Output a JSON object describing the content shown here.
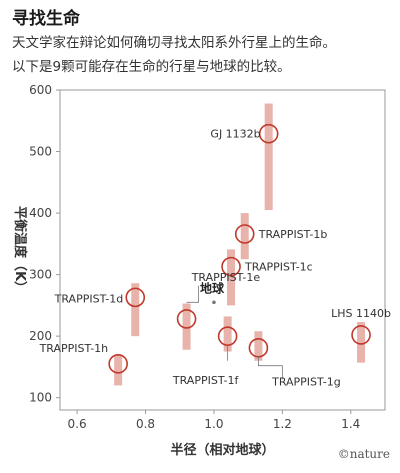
{
  "header": {
    "title": "寻找生命",
    "subtitle_lines": [
      "天文学家在辩论如何确切寻找太阳系外行星上的生命。",
      "以下是9颗可能存在生命的行星与地球的比较。"
    ]
  },
  "credit": "©nature",
  "chart_data": {
    "type": "scatter",
    "xlabel": "半径（相对地球）",
    "ylabel": "平衡温度（K）",
    "xlim": [
      0.55,
      1.5
    ],
    "ylim": [
      80,
      600
    ],
    "xticks": [
      0.6,
      0.8,
      1.0,
      1.2,
      1.4
    ],
    "xtick_labels": [
      "0.6",
      "0.8",
      "1.0",
      "1.2",
      "1.4"
    ],
    "yticks": [
      100,
      200,
      300,
      400,
      500,
      600
    ],
    "ytick_labels": [
      "100",
      "200",
      "300",
      "400",
      "500",
      "600"
    ],
    "grid": false,
    "points": [
      {
        "name": "GJ 1132b",
        "x": 1.16,
        "y": 529,
        "ymin": 405,
        "ymax": 578
      },
      {
        "name": "TRAPPIST-1b",
        "x": 1.09,
        "y": 366,
        "ymin": 325,
        "ymax": 400
      },
      {
        "name": "TRAPPIST-1c",
        "x": 1.05,
        "y": 313,
        "ymin": 250,
        "ymax": 341
      },
      {
        "name": "TRAPPIST-1d",
        "x": 0.77,
        "y": 263,
        "ymin": 200,
        "ymax": 286
      },
      {
        "name": "TRAPPIST-1e",
        "x": 0.92,
        "y": 228,
        "ymin": 178,
        "ymax": 253
      },
      {
        "name": "TRAPPIST-1f",
        "x": 1.04,
        "y": 200,
        "ymin": 175,
        "ymax": 232
      },
      {
        "name": "TRAPPIST-1g",
        "x": 1.13,
        "y": 181,
        "ymin": 160,
        "ymax": 208
      },
      {
        "name": "TRAPPIST-1h",
        "x": 0.72,
        "y": 155,
        "ymin": 120,
        "ymax": 170
      },
      {
        "name": "LHS 1140b",
        "x": 1.43,
        "y": 202,
        "ymin": 157,
        "ymax": 223
      },
      {
        "name": "地球",
        "x": 1.0,
        "y": 255
      }
    ],
    "colors": {
      "marker": "#c0392b",
      "errorbar": "#e8b3ab",
      "axis": "#999999"
    }
  }
}
